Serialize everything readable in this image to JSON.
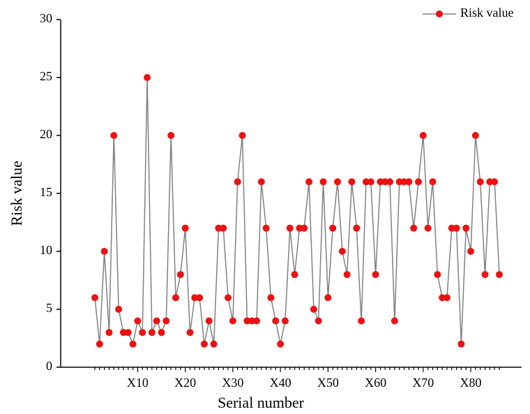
{
  "chart_data": {
    "type": "line",
    "x_label": "Serial number",
    "y_label": "Risk value",
    "categories": [
      null,
      null,
      null,
      null,
      null,
      null,
      null,
      null,
      null,
      "X10",
      null,
      null,
      null,
      null,
      null,
      null,
      null,
      null,
      null,
      "X20",
      null,
      null,
      null,
      null,
      null,
      null,
      null,
      null,
      null,
      "X30",
      null,
      null,
      null,
      null,
      null,
      null,
      null,
      null,
      null,
      "X40",
      null,
      null,
      null,
      null,
      null,
      null,
      null,
      null,
      null,
      "X50",
      null,
      null,
      null,
      null,
      null,
      null,
      null,
      null,
      null,
      "X60",
      null,
      null,
      null,
      null,
      null,
      null,
      null,
      null,
      null,
      "X70",
      null,
      null,
      null,
      null,
      null,
      null,
      null,
      null,
      null,
      "X80",
      null,
      null,
      null,
      null,
      null,
      null
    ],
    "series": [
      {
        "name": "Risk value",
        "color": "#808080",
        "marker_color": "#ee1111",
        "values": [
          6,
          2,
          10,
          3,
          20,
          5,
          3,
          3,
          2,
          4,
          3,
          25,
          3,
          4,
          3,
          4,
          20,
          6,
          8,
          12,
          3,
          6,
          6,
          2,
          4,
          2,
          12,
          12,
          6,
          4,
          16,
          20,
          4,
          4,
          4,
          16,
          12,
          6,
          4,
          2,
          4,
          12,
          8,
          12,
          12,
          16,
          5,
          4,
          16,
          6,
          12,
          16,
          10,
          8,
          16,
          12,
          4,
          16,
          16,
          8,
          16,
          16,
          16,
          4,
          16,
          16,
          16,
          12,
          16,
          20,
          12,
          16,
          8,
          6,
          6,
          12,
          12,
          2,
          12,
          10,
          20,
          16,
          8,
          16,
          16,
          8
        ]
      }
    ],
    "ylim": [
      0,
      30
    ],
    "yticks": [
      0,
      5,
      10,
      15,
      20,
      25,
      30
    ],
    "legend": "top-right"
  }
}
